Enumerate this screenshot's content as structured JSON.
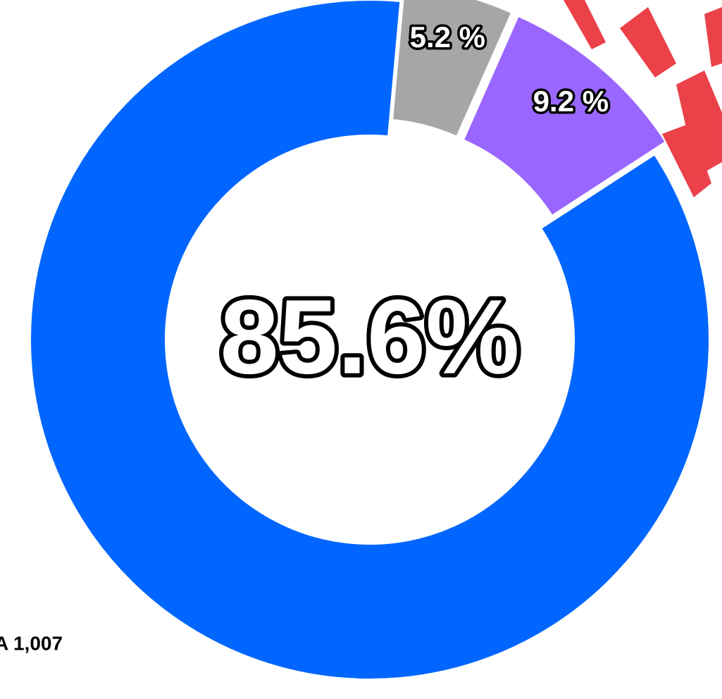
{
  "chart_data": {
    "type": "donut",
    "values": [
      85.6,
      5.2,
      9.2
    ],
    "value_labels": [
      "85.6%",
      "5.2 %",
      "9.2 %"
    ],
    "colors": [
      "#0066ff",
      "#a6a6a6",
      "#9966ff"
    ],
    "annotation": "A 1,007"
  }
}
